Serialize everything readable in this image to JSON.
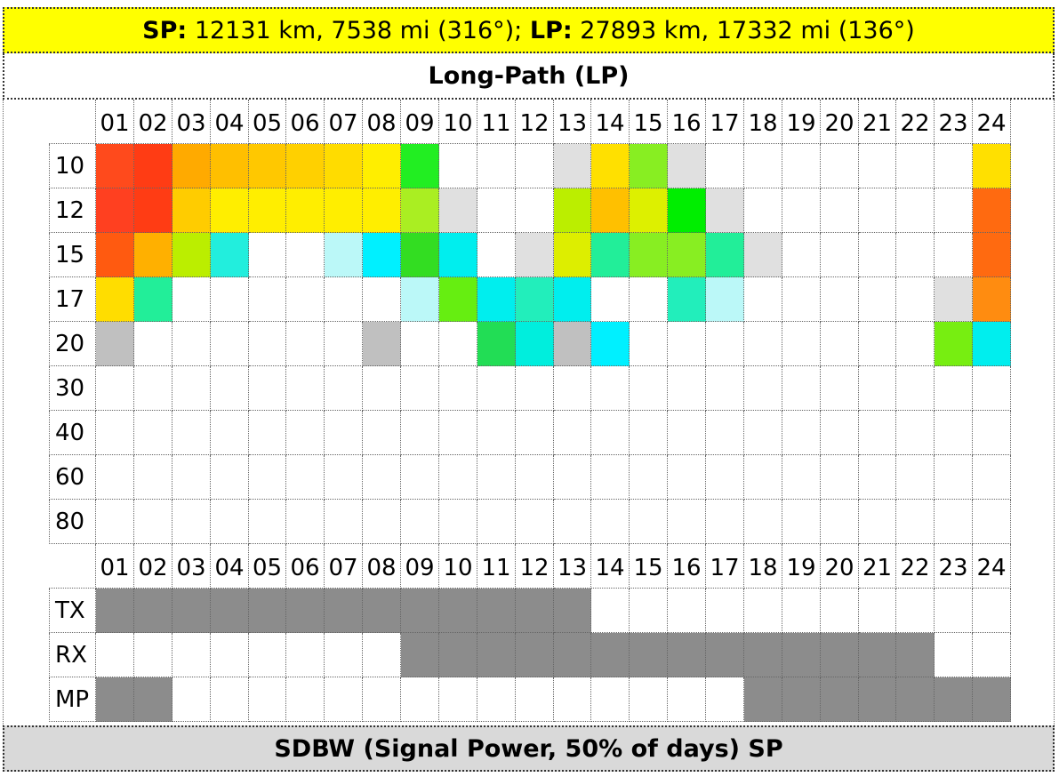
{
  "header": {
    "sp_label": "SP:",
    "sp_text": "12131 km, 7538 mi (316°);",
    "lp_label": "LP:",
    "lp_text": "27893 km, 17332 mi (136°)"
  },
  "title": "Long-Path (LP)",
  "hours": [
    "01",
    "02",
    "03",
    "04",
    "05",
    "06",
    "07",
    "08",
    "09",
    "10",
    "11",
    "12",
    "13",
    "14",
    "15",
    "16",
    "17",
    "18",
    "19",
    "20",
    "21",
    "22",
    "23",
    "24"
  ],
  "bands": [
    {
      "label": "10",
      "colors": [
        "#ff4a1c",
        "#ff3c14",
        "#ffaa00",
        "#ffbf00",
        "#ffc800",
        "#ffd000",
        "#ffdc00",
        "#ffee00",
        "#22ee22",
        "#ffffff",
        "#ffffff",
        "#ffffff",
        "#e0e0e0",
        "#ffe000",
        "#88ee22",
        "#e0e0e0",
        "#ffffff",
        "#ffffff",
        "#ffffff",
        "#ffffff",
        "#ffffff",
        "#ffffff",
        "#ffffff",
        "#ffe000"
      ]
    },
    {
      "label": "12",
      "colors": [
        "#ff4020",
        "#ff3c14",
        "#ffcc00",
        "#ffee00",
        "#ffee00",
        "#ffee00",
        "#ffee00",
        "#ffee00",
        "#aaee22",
        "#e0e0e0",
        "#ffffff",
        "#ffffff",
        "#bbee00",
        "#ffc000",
        "#ddf000",
        "#00ee00",
        "#e0e0e0",
        "#ffffff",
        "#ffffff",
        "#ffffff",
        "#ffffff",
        "#ffffff",
        "#ffffff",
        "#ff6a10"
      ]
    },
    {
      "label": "15",
      "colors": [
        "#ff5a10",
        "#ffb000",
        "#bbee00",
        "#22eedd",
        "#ffffff",
        "#ffffff",
        "#bbf8f8",
        "#00f0ff",
        "#33dd22",
        "#00eeee",
        "#ffffff",
        "#e0e0e0",
        "#ddee00",
        "#22ee99",
        "#88ee22",
        "#88ee22",
        "#22ee99",
        "#e0e0e0",
        "#ffffff",
        "#ffffff",
        "#ffffff",
        "#ffffff",
        "#ffffff",
        "#ff6a10"
      ]
    },
    {
      "label": "17",
      "colors": [
        "#ffdd00",
        "#22ee99",
        "#ffffff",
        "#ffffff",
        "#ffffff",
        "#ffffff",
        "#ffffff",
        "#ffffff",
        "#bbf8f8",
        "#66ee11",
        "#00eeee",
        "#22eebb",
        "#00eeee",
        "#ffffff",
        "#ffffff",
        "#22eebb",
        "#bbf8f8",
        "#ffffff",
        "#ffffff",
        "#ffffff",
        "#ffffff",
        "#ffffff",
        "#e0e0e0",
        "#ff8c10"
      ]
    },
    {
      "label": "20",
      "colors": [
        "#c0c0c0",
        "#ffffff",
        "#ffffff",
        "#ffffff",
        "#ffffff",
        "#ffffff",
        "#ffffff",
        "#c0c0c0",
        "#ffffff",
        "#ffffff",
        "#22dd55",
        "#00eedd",
        "#c0c0c0",
        "#00f0ff",
        "#ffffff",
        "#ffffff",
        "#ffffff",
        "#ffffff",
        "#ffffff",
        "#ffffff",
        "#ffffff",
        "#ffffff",
        "#77ee11",
        "#00eeee"
      ]
    },
    {
      "label": "30",
      "colors": [
        "#ffffff",
        "#ffffff",
        "#ffffff",
        "#ffffff",
        "#ffffff",
        "#ffffff",
        "#ffffff",
        "#ffffff",
        "#ffffff",
        "#ffffff",
        "#ffffff",
        "#ffffff",
        "#ffffff",
        "#ffffff",
        "#ffffff",
        "#ffffff",
        "#ffffff",
        "#ffffff",
        "#ffffff",
        "#ffffff",
        "#ffffff",
        "#ffffff",
        "#ffffff",
        "#ffffff"
      ]
    },
    {
      "label": "40",
      "colors": [
        "#ffffff",
        "#ffffff",
        "#ffffff",
        "#ffffff",
        "#ffffff",
        "#ffffff",
        "#ffffff",
        "#ffffff",
        "#ffffff",
        "#ffffff",
        "#ffffff",
        "#ffffff",
        "#ffffff",
        "#ffffff",
        "#ffffff",
        "#ffffff",
        "#ffffff",
        "#ffffff",
        "#ffffff",
        "#ffffff",
        "#ffffff",
        "#ffffff",
        "#ffffff",
        "#ffffff"
      ]
    },
    {
      "label": "60",
      "colors": [
        "#ffffff",
        "#ffffff",
        "#ffffff",
        "#ffffff",
        "#ffffff",
        "#ffffff",
        "#ffffff",
        "#ffffff",
        "#ffffff",
        "#ffffff",
        "#ffffff",
        "#ffffff",
        "#ffffff",
        "#ffffff",
        "#ffffff",
        "#ffffff",
        "#ffffff",
        "#ffffff",
        "#ffffff",
        "#ffffff",
        "#ffffff",
        "#ffffff",
        "#ffffff",
        "#ffffff"
      ]
    },
    {
      "label": "80",
      "colors": [
        "#ffffff",
        "#ffffff",
        "#ffffff",
        "#ffffff",
        "#ffffff",
        "#ffffff",
        "#ffffff",
        "#ffffff",
        "#ffffff",
        "#ffffff",
        "#ffffff",
        "#ffffff",
        "#ffffff",
        "#ffffff",
        "#ffffff",
        "#ffffff",
        "#ffffff",
        "#ffffff",
        "#ffffff",
        "#ffffff",
        "#ffffff",
        "#ffffff",
        "#ffffff",
        "#ffffff"
      ]
    }
  ],
  "status_color": "#8c8c8c",
  "status": [
    {
      "label": "TX",
      "on": [
        true,
        true,
        true,
        true,
        true,
        true,
        true,
        true,
        true,
        true,
        true,
        true,
        true,
        false,
        false,
        false,
        false,
        false,
        false,
        false,
        false,
        false,
        false,
        false
      ]
    },
    {
      "label": "RX",
      "on": [
        false,
        false,
        false,
        false,
        false,
        false,
        false,
        false,
        true,
        true,
        true,
        true,
        true,
        true,
        true,
        true,
        true,
        true,
        true,
        true,
        true,
        true,
        false,
        false
      ]
    },
    {
      "label": "MP",
      "on": [
        true,
        true,
        false,
        false,
        false,
        false,
        false,
        false,
        false,
        false,
        false,
        false,
        false,
        false,
        false,
        false,
        false,
        true,
        true,
        true,
        true,
        true,
        true,
        true
      ]
    }
  ],
  "footer": "SDBW (Signal Power, 50% of days) SP"
}
